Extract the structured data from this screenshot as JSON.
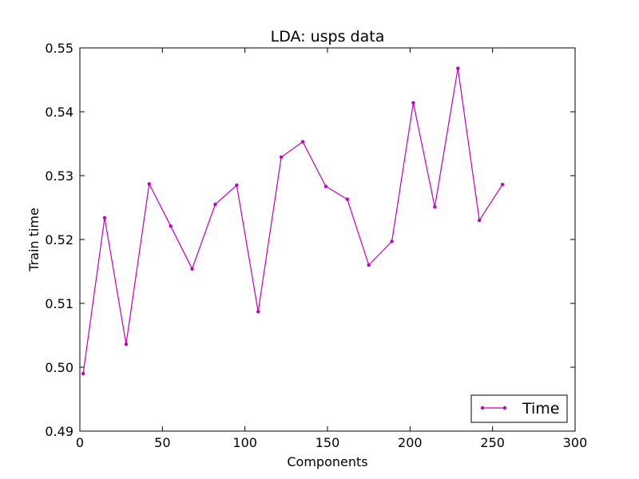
{
  "chart_data": {
    "type": "line",
    "title": "LDA: usps data",
    "xlabel": "Components",
    "ylabel": "Train time",
    "xlim": [
      0,
      300
    ],
    "ylim": [
      0.49,
      0.55
    ],
    "xticks": [
      0,
      50,
      100,
      150,
      200,
      250,
      300
    ],
    "yticks": [
      0.49,
      0.5,
      0.51,
      0.52,
      0.53,
      0.54,
      0.55
    ],
    "xtick_labels": [
      "0",
      "50",
      "100",
      "150",
      "200",
      "250",
      "300"
    ],
    "ytick_labels": [
      "0.49",
      "0.50",
      "0.51",
      "0.52",
      "0.53",
      "0.54",
      "0.55"
    ],
    "grid": false,
    "legend": {
      "position": "bottom-right"
    },
    "series": [
      {
        "name": "Time",
        "color": "#bf00bf",
        "marker": "point",
        "x": [
          2,
          15,
          28,
          42,
          55,
          68,
          82,
          95,
          108,
          122,
          135,
          149,
          162,
          175,
          189,
          202,
          215,
          229,
          242,
          256
        ],
        "y": [
          0.499,
          0.5234,
          0.5036,
          0.5287,
          0.5221,
          0.5154,
          0.5255,
          0.5285,
          0.5087,
          0.5329,
          0.5353,
          0.5283,
          0.5263,
          0.516,
          0.5197,
          0.5414,
          0.5251,
          0.5468,
          0.523,
          0.5286
        ]
      }
    ]
  }
}
